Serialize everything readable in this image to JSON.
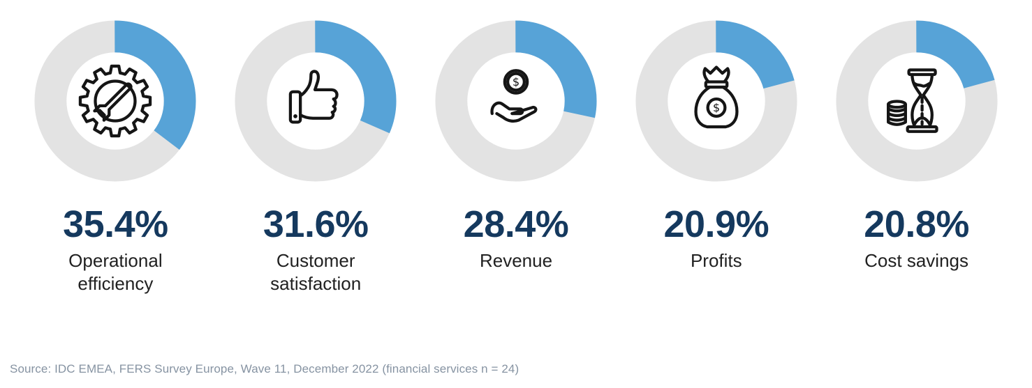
{
  "chart_data": {
    "type": "pie",
    "subtype": "donut-gauge-row",
    "title": "",
    "categories": [
      "Operational efficiency",
      "Customer satisfaction",
      "Revenue",
      "Profits",
      "Cost savings"
    ],
    "values": [
      35.4,
      31.6,
      28.4,
      20.9,
      20.8
    ],
    "value_range": [
      0,
      100
    ],
    "arc_start": "top",
    "direction": "clockwise",
    "legend_position": "none",
    "items": [
      {
        "label": "Operational efficiency",
        "value": 35.4,
        "value_label": "35.4%",
        "icon": "gear-wrench-icon"
      },
      {
        "label": "Customer satisfaction",
        "value": 31.6,
        "value_label": "31.6%",
        "icon": "thumbs-up-icon"
      },
      {
        "label": "Revenue",
        "value": 28.4,
        "value_label": "28.4%",
        "icon": "hand-coin-icon"
      },
      {
        "label": "Profits",
        "value": 20.9,
        "value_label": "20.9%",
        "icon": "money-bag-icon"
      },
      {
        "label": "Cost savings",
        "value": 20.8,
        "value_label": "20.8%",
        "icon": "hourglass-coins-icon"
      }
    ],
    "colors": {
      "arc": "#57a3d7",
      "track": "#e3e3e3",
      "value_text": "#15395e",
      "label_text": "#212121",
      "source_text": "#8693a2",
      "icon_stroke": "#151515"
    }
  },
  "icons": {
    "dollar_glyph": "$"
  },
  "source": "Source: IDC EMEA, FERS Survey Europe, Wave 11, December 2022 (financial services n = 24)"
}
